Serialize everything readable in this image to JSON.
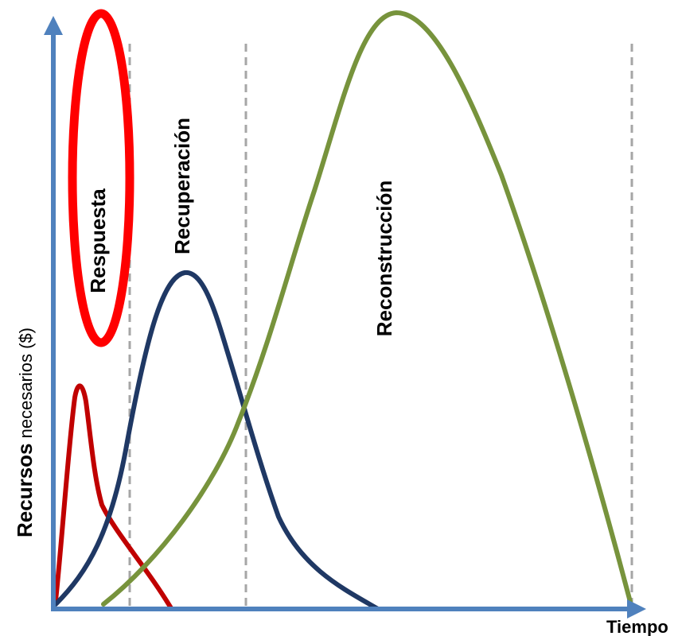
{
  "phases": [
    {
      "label": "Respuesta",
      "color": "#c00000"
    },
    {
      "label": "Recuperación",
      "color": "#1f3864"
    },
    {
      "label": "Reconstrucción",
      "color": "#77933c"
    }
  ],
  "axes": {
    "y_label_main": "Recursos",
    "y_label_rest": " necesarios ($)",
    "x_label": "Tiempo",
    "axis_color": "#4f81bd"
  },
  "highlight": {
    "color": "#ff0000"
  },
  "divider_color": "#a6a6a6"
}
